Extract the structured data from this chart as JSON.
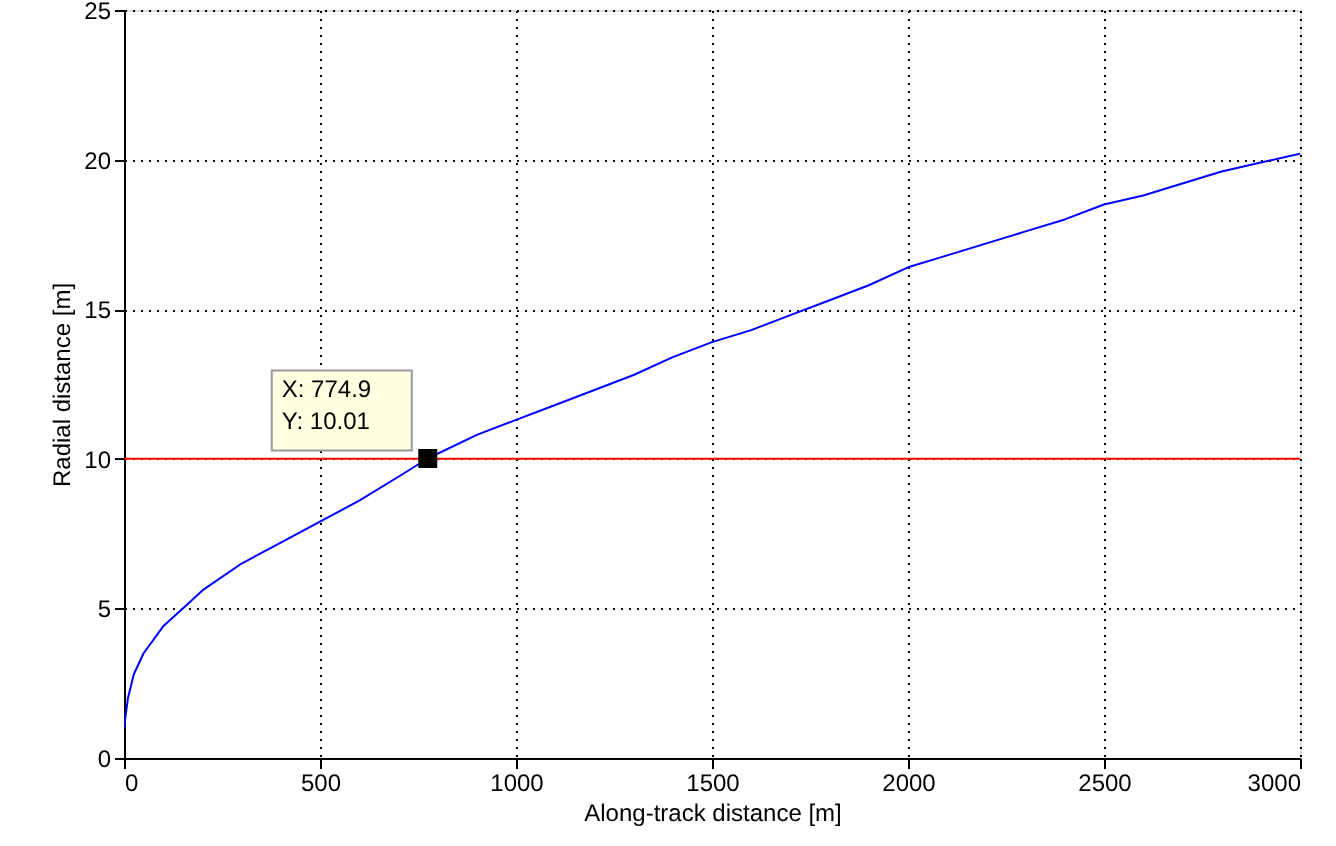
{
  "chart_data": {
    "type": "line",
    "xlabel": "Along-track distance [m]",
    "ylabel": "Radial distance [m]",
    "x": [
      0,
      10,
      25,
      50,
      100,
      150,
      200,
      300,
      400,
      500,
      600,
      700,
      774.9,
      900,
      1000,
      1100,
      1200,
      1300,
      1400,
      1500,
      1600,
      1700,
      1800,
      1900,
      2000,
      2100,
      2200,
      2300,
      2400,
      2500,
      2600,
      2700,
      2800,
      2900,
      3000
    ],
    "series": [
      {
        "color": "#0000ff",
        "values": [
          1.0,
          2.0,
          2.8,
          3.5,
          4.4,
          5.0,
          5.6,
          6.5,
          7.2,
          7.9,
          8.6,
          9.4,
          10.01,
          10.8,
          11.3,
          11.8,
          12.3,
          12.8,
          13.4,
          13.9,
          14.3,
          14.8,
          15.3,
          15.8,
          16.4,
          16.8,
          17.2,
          17.6,
          18.0,
          18.5,
          18.8,
          19.2,
          19.6,
          19.9,
          20.2
        ]
      }
    ],
    "xlim": [
      0,
      3000
    ],
    "xticks": [
      0,
      500,
      1000,
      1500,
      2000,
      2500,
      3000
    ],
    "ylim": [
      0,
      25
    ],
    "yticks": [
      0,
      5,
      10,
      15,
      20,
      25
    ],
    "grid": true,
    "line_style": "solid",
    "ref_lines": [
      {
        "axis": "y",
        "value": 10,
        "label": null,
        "color": "#ff0000"
      }
    ],
    "annotations": [
      {
        "text": "X: 774.9\nY: 10.01",
        "x": 774.9,
        "y": 10.01
      }
    ]
  }
}
